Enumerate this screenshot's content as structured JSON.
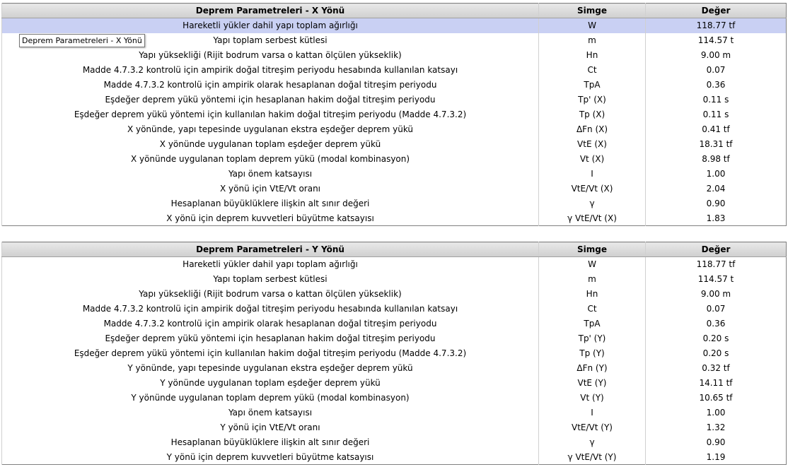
{
  "tooltip": "Deprem Parametreleri - X Yönü",
  "tables": [
    {
      "header": [
        "Deprem Parametreleri - X Yönü",
        "Simge",
        "Değer"
      ],
      "rows": [
        [
          "Hareketli yükler dahil yapı toplam ağırlığı",
          "W",
          "118.77 tf"
        ],
        [
          "Yapı toplam serbest kütlesi",
          "m",
          "114.57 t"
        ],
        [
          "Yapı yüksekliği (Rijit bodrum varsa o kattan ölçülen yükseklik)",
          "Hn",
          "9.00 m"
        ],
        [
          "Madde 4.7.3.2 kontrolü için ampirik doğal titreşim periyodu hesabında kullanılan katsayı",
          "Ct",
          "0.07"
        ],
        [
          "Madde 4.7.3.2 kontrolü için ampirik olarak hesaplanan doğal titreşim periyodu",
          "TpA",
          "0.36"
        ],
        [
          "Eşdeğer deprem yükü yöntemi için hesaplanan hakim doğal titreşim periyodu",
          "Tp' (X)",
          "0.11 s"
        ],
        [
          "Eşdeğer deprem yükü yöntemi için kullanılan hakim doğal titreşim periyodu (Madde 4.7.3.2)",
          "Tp (X)",
          "0.11 s"
        ],
        [
          "X yönünde, yapı tepesinde uygulanan ekstra eşdeğer deprem yükü",
          "ΔFn (X)",
          "0.41 tf"
        ],
        [
          "X yönünde uygulanan toplam eşdeğer deprem yükü",
          "VtE (X)",
          "18.31 tf"
        ],
        [
          "X yönünde uygulanan toplam deprem yükü (modal kombinasyon)",
          "Vt (X)",
          "8.98 tf"
        ],
        [
          "Yapı önem katsayısı",
          "I",
          "1.00"
        ],
        [
          "X yönü için VtE/Vt oranı",
          "VtE/Vt (X)",
          "2.04"
        ],
        [
          "Hesaplanan büyüklüklere ilişkin alt sınır değeri",
          "γ",
          "0.90"
        ],
        [
          "X yönü için deprem kuvvetleri büyütme katsayısı",
          "γ VtE/Vt (X)",
          "1.83"
        ]
      ]
    },
    {
      "header": [
        "Deprem Parametreleri - Y Yönü",
        "Simge",
        "Değer"
      ],
      "rows": [
        [
          "Hareketli yükler dahil yapı toplam ağırlığı",
          "W",
          "118.77 tf"
        ],
        [
          "Yapı toplam serbest kütlesi",
          "m",
          "114.57 t"
        ],
        [
          "Yapı yüksekliği (Rijit bodrum varsa o kattan ölçülen yükseklik)",
          "Hn",
          "9.00 m"
        ],
        [
          "Madde 4.7.3.2 kontrolü için ampirik doğal titreşim periyodu hesabında kullanılan katsayı",
          "Ct",
          "0.07"
        ],
        [
          "Madde 4.7.3.2 kontrolü için ampirik olarak hesaplanan doğal titreşim periyodu",
          "TpA",
          "0.36"
        ],
        [
          "Eşdeğer deprem yükü yöntemi için hesaplanan hakim doğal titreşim periyodu",
          "Tp' (Y)",
          "0.20 s"
        ],
        [
          "Eşdeğer deprem yükü yöntemi için kullanılan hakim doğal titreşim periyodu (Madde 4.7.3.2)",
          "Tp (Y)",
          "0.20 s"
        ],
        [
          "Y yönünde, yapı tepesinde uygulanan ekstra eşdeğer deprem yükü",
          "ΔFn (Y)",
          "0.32 tf"
        ],
        [
          "Y yönünde uygulanan toplam eşdeğer deprem yükü",
          "VtE (Y)",
          "14.11 tf"
        ],
        [
          "Y yönünde uygulanan toplam deprem yükü (modal kombinasyon)",
          "Vt (Y)",
          "10.65 tf"
        ],
        [
          "Yapı önem katsayısı",
          "I",
          "1.00"
        ],
        [
          "Y yönü için VtE/Vt oranı",
          "VtE/Vt (Y)",
          "1.32"
        ],
        [
          "Hesaplanan büyüklüklere ilişkin alt sınır değeri",
          "γ",
          "0.90"
        ],
        [
          "Y yönü için deprem kuvvetleri büyütme katsayısı",
          "γ VtE/Vt (Y)",
          "1.19"
        ]
      ]
    }
  ]
}
